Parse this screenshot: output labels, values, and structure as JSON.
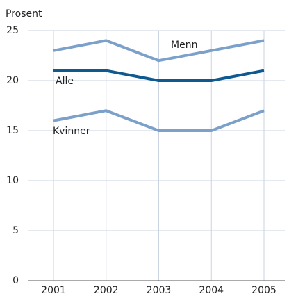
{
  "chart_data": {
    "type": "line",
    "y_label": "Prosent",
    "categories": [
      "2001",
      "2002",
      "2003",
      "2004",
      "2005"
    ],
    "series": [
      {
        "name": "Menn",
        "color": "#7ba0ca",
        "values": [
          23,
          24,
          22,
          23,
          24
        ]
      },
      {
        "name": "Alle",
        "color": "#10598f",
        "values": [
          21,
          21,
          20,
          20,
          21
        ]
      },
      {
        "name": "Kvinner",
        "color": "#7ba0ca",
        "values": [
          16,
          17,
          15,
          15,
          17
        ]
      }
    ],
    "ylim": [
      0,
      25
    ],
    "yticks": [
      0,
      5,
      10,
      15,
      20,
      25
    ],
    "grid": true
  }
}
